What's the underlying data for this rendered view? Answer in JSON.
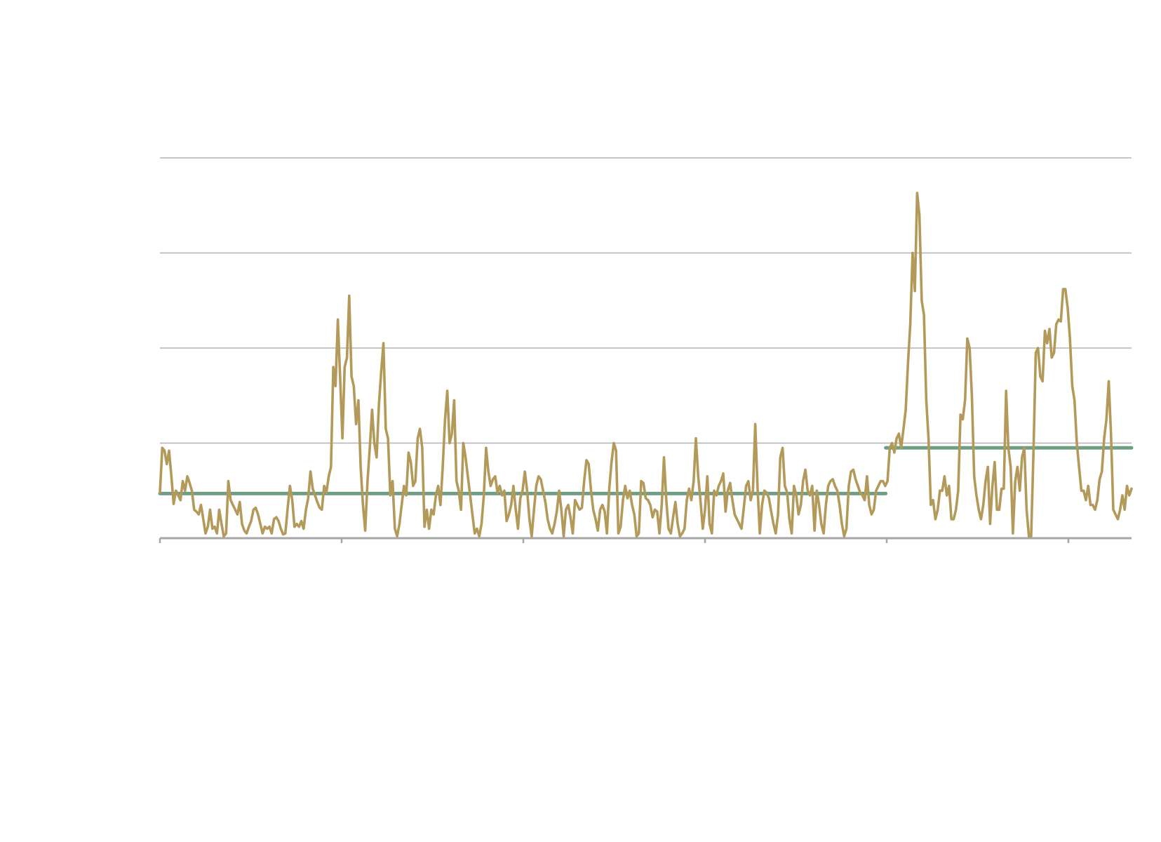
{
  "chart_data": {
    "type": "line",
    "title": "",
    "xlabel": "",
    "ylabel": "",
    "ylim": [
      0,
      4
    ],
    "yticks": [
      0,
      1,
      2,
      3,
      4
    ],
    "grid": true,
    "n_xticks": 7,
    "colors": {
      "series": "#b39a5b",
      "reference": "#6f9f82",
      "grid": "#b3b3b3",
      "axis": "#a6a6a6"
    },
    "series": [
      {
        "values": [
          0.48,
          0.95,
          0.92,
          0.78,
          0.92,
          0.65,
          0.36,
          0.5,
          0.45,
          0.4,
          0.6,
          0.5,
          0.65,
          0.58,
          0.5,
          0.3,
          0.28,
          0.25,
          0.35,
          0.2,
          0.05,
          0.12,
          0.3,
          0.1,
          0.12,
          0.05,
          0.3,
          0.15,
          0.02,
          0.05,
          0.6,
          0.4,
          0.35,
          0.3,
          0.25,
          0.38,
          0.15,
          0.08,
          0.05,
          0.12,
          0.18,
          0.3,
          0.32,
          0.25,
          0.15,
          0.05,
          0.12,
          0.1,
          0.12,
          0.05,
          0.2,
          0.22,
          0.18,
          0.1,
          0.04,
          0.05,
          0.32,
          0.55,
          0.4,
          0.12,
          0.15,
          0.12,
          0.18,
          0.1,
          0.3,
          0.42,
          0.7,
          0.52,
          0.45,
          0.38,
          0.32,
          0.3,
          0.55,
          0.48,
          0.65,
          0.75,
          1.8,
          1.6,
          2.3,
          1.7,
          1.05,
          1.8,
          1.9,
          2.55,
          1.7,
          1.6,
          1.2,
          1.45,
          0.75,
          0.35,
          0.08,
          0.6,
          0.95,
          1.35,
          1.0,
          0.85,
          1.4,
          1.75,
          2.05,
          1.15,
          1.05,
          0.45,
          0.6,
          0.1,
          0.02,
          0.15,
          0.35,
          0.55,
          0.45,
          0.9,
          0.8,
          0.55,
          0.6,
          1.05,
          1.15,
          0.95,
          0.12,
          0.3,
          0.1,
          0.3,
          0.25,
          0.45,
          0.55,
          0.35,
          0.75,
          1.25,
          1.55,
          1.0,
          1.1,
          1.45,
          0.6,
          0.5,
          0.3,
          1.0,
          0.85,
          0.65,
          0.45,
          0.25,
          0.05,
          0.1,
          0.02,
          0.15,
          0.45,
          0.95,
          0.7,
          0.55,
          0.62,
          0.65,
          0.48,
          0.55,
          0.45,
          0.5,
          0.18,
          0.25,
          0.35,
          0.55,
          0.3,
          0.1,
          0.42,
          0.5,
          0.7,
          0.5,
          0.2,
          0.02,
          0.3,
          0.55,
          0.65,
          0.62,
          0.5,
          0.38,
          0.2,
          0.1,
          0.05,
          0.15,
          0.28,
          0.5,
          0.3,
          0.02,
          0.3,
          0.35,
          0.22,
          0.05,
          0.4,
          0.35,
          0.3,
          0.32,
          0.6,
          0.82,
          0.78,
          0.5,
          0.3,
          0.2,
          0.08,
          0.3,
          0.35,
          0.28,
          0.05,
          0.52,
          0.8,
          1.0,
          0.92,
          0.05,
          0.12,
          0.4,
          0.55,
          0.42,
          0.5,
          0.35,
          0.25,
          0.02,
          0.05,
          0.6,
          0.58,
          0.42,
          0.4,
          0.35,
          0.22,
          0.3,
          0.28,
          0.05,
          0.35,
          0.85,
          0.4,
          0.1,
          0.05,
          0.22,
          0.38,
          0.15,
          0.02,
          0.05,
          0.1,
          0.4,
          0.52,
          0.4,
          0.6,
          1.05,
          0.65,
          0.4,
          0.1,
          0.3,
          0.65,
          0.15,
          0.05,
          0.5,
          0.45,
          0.55,
          0.6,
          0.68,
          0.28,
          0.5,
          0.58,
          0.4,
          0.25,
          0.2,
          0.15,
          0.1,
          0.32,
          0.55,
          0.6,
          0.4,
          0.5,
          1.2,
          0.55,
          0.05,
          0.35,
          0.5,
          0.48,
          0.42,
          0.28,
          0.15,
          0.05,
          0.25,
          0.85,
          0.95,
          0.55,
          0.48,
          0.2,
          0.05,
          0.55,
          0.45,
          0.25,
          0.35,
          0.6,
          0.72,
          0.5,
          0.45,
          0.55,
          0.08,
          0.5,
          0.35,
          0.15,
          0.05,
          0.35,
          0.55,
          0.6,
          0.62,
          0.55,
          0.5,
          0.35,
          0.15,
          0.02,
          0.1,
          0.55,
          0.7,
          0.72,
          0.62,
          0.55,
          0.48,
          0.45,
          0.4,
          0.65,
          0.35,
          0.25,
          0.3,
          0.5,
          0.55,
          0.6,
          0.6,
          0.55,
          0.6,
          0.95,
          1.0,
          0.9,
          1.05,
          1.1,
          0.95,
          1.15,
          1.35,
          1.85,
          2.25,
          3.0,
          2.6,
          3.63,
          3.4,
          2.5,
          2.35,
          1.45,
          1.05,
          0.35,
          0.4,
          0.2,
          0.3,
          0.5,
          0.5,
          0.65,
          0.45,
          0.55,
          0.2,
          0.2,
          0.3,
          0.5,
          1.3,
          1.25,
          1.45,
          2.1,
          2.0,
          1.5,
          0.65,
          0.45,
          0.3,
          0.2,
          0.35,
          0.6,
          0.75,
          0.15,
          0.55,
          0.8,
          0.3,
          0.3,
          0.52,
          0.52,
          1.55,
          0.95,
          0.75,
          0.05,
          0.6,
          0.75,
          0.5,
          0.85,
          0.95,
          0.3,
          0.02,
          0.02,
          0.9,
          1.95,
          2.0,
          1.7,
          1.65,
          2.18,
          2.05,
          2.2,
          1.9,
          1.95,
          2.25,
          2.3,
          2.28,
          2.62,
          2.62,
          2.42,
          2.1,
          1.6,
          1.45,
          1.0,
          0.75,
          0.5,
          0.5,
          0.4,
          0.55,
          0.35,
          0.35,
          0.3,
          0.4,
          0.62,
          0.7,
          1.05,
          1.25,
          1.65,
          1.1,
          0.3,
          0.25,
          0.2,
          0.3,
          0.45,
          0.3,
          0.55,
          0.45,
          0.52
        ]
      }
    ],
    "reference_lines": [
      {
        "y": 0.47,
        "x_from": 0.0,
        "x_to": 0.747
      },
      {
        "y": 0.95,
        "x_from": 0.747,
        "x_to": 1.0
      }
    ]
  }
}
